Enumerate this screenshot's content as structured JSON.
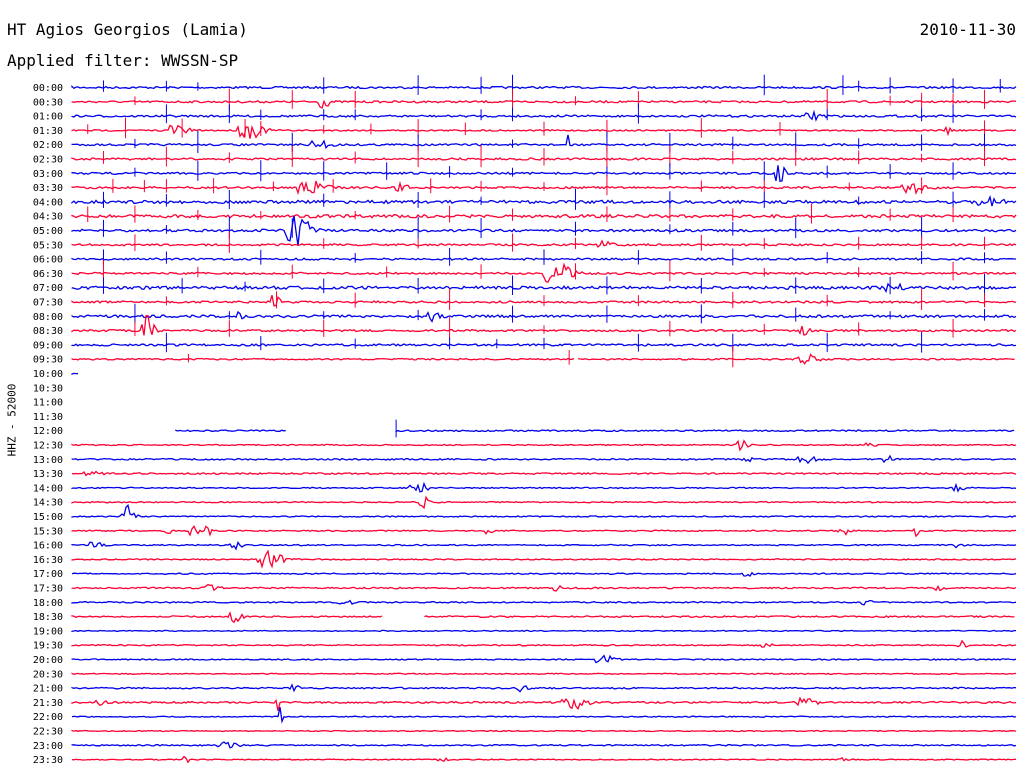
{
  "header": {
    "station": "HT Agios Georgios (Lamia)",
    "date": "2010-11-30",
    "filter": "Applied filter: WWSSN-SP",
    "channel": "HHZ - 52000"
  },
  "colors": {
    "odd": "#ff0033",
    "even": "#0000ee"
  },
  "chart_data": {
    "type": "line",
    "title": "HT Agios Georgios (Lamia)",
    "subtitle": "Applied filter: WWSSN-SP",
    "ylabel": "HHZ - 52000",
    "date": "2010-11-30",
    "row_labels": [
      "00:00",
      "00:30",
      "01:00",
      "01:30",
      "02:00",
      "02:30",
      "03:00",
      "03:30",
      "04:00",
      "04:30",
      "05:00",
      "05:30",
      "06:00",
      "06:30",
      "07:00",
      "07:30",
      "08:00",
      "08:30",
      "09:00",
      "09:30",
      "10:00",
      "10:30",
      "11:00",
      "11:30",
      "12:00",
      "12:30",
      "13:00",
      "13:30",
      "14:00",
      "14:30",
      "15:00",
      "15:30",
      "16:00",
      "16:30",
      "17:00",
      "17:30",
      "18:00",
      "18:30",
      "19:00",
      "19:30",
      "20:00",
      "20:30",
      "21:00",
      "21:30",
      "22:00",
      "22:30",
      "23:00",
      "23:30"
    ],
    "x_range_minutes": [
      0,
      30
    ],
    "rows": [
      {
        "seg": [
          [
            0,
            30
          ]
        ],
        "noise": 2,
        "spikes": [
          1,
          3,
          4,
          8,
          11,
          13,
          14,
          22,
          24.5,
          25,
          26,
          28,
          29.5
        ],
        "events": []
      },
      {
        "seg": [
          [
            0,
            30
          ]
        ],
        "noise": 2,
        "spikes": [
          2,
          5,
          7,
          9,
          14,
          16,
          18,
          24,
          26,
          27,
          28,
          29
        ],
        "events": [
          [
            7.9,
            0.4,
            6
          ]
        ]
      },
      {
        "seg": [
          [
            0,
            30
          ]
        ],
        "noise": 2,
        "spikes": [
          3,
          5,
          6,
          8,
          9,
          13,
          14,
          18,
          24,
          27,
          28
        ],
        "events": [
          [
            23.5,
            0.6,
            4
          ]
        ]
      },
      {
        "seg": [
          [
            0,
            30
          ]
        ],
        "noise": 1.5,
        "spikes": [
          0.5,
          1.7,
          3.5,
          5.5,
          6,
          8,
          9.5,
          11,
          12.5,
          15,
          17,
          20,
          22.5,
          29
        ],
        "events": [
          [
            3.2,
            0.6,
            8
          ],
          [
            5.5,
            0.8,
            8
          ],
          [
            27.8,
            0.2,
            7
          ]
        ]
      },
      {
        "seg": [
          [
            0,
            30
          ]
        ],
        "noise": 2,
        "spikes": [
          2,
          4,
          7,
          11,
          14,
          17,
          19,
          21,
          23,
          25,
          27,
          29
        ],
        "events": [
          [
            7.8,
            0.6,
            5
          ],
          [
            15.7,
            0.2,
            10
          ]
        ]
      },
      {
        "seg": [
          [
            0,
            30
          ]
        ],
        "noise": 2,
        "spikes": [
          1,
          3,
          5,
          7,
          9,
          11,
          13,
          15,
          17,
          19,
          21,
          23,
          25,
          27,
          29
        ],
        "events": []
      },
      {
        "seg": [
          [
            0,
            30
          ]
        ],
        "noise": 2,
        "spikes": [
          2,
          4,
          6,
          8,
          10,
          12,
          14,
          17,
          19,
          22,
          24,
          26,
          28
        ],
        "events": [
          [
            22.4,
            0.3,
            14
          ]
        ]
      },
      {
        "seg": [
          [
            0,
            30
          ]
        ],
        "noise": 2,
        "spikes": [
          1.3,
          2.3,
          3,
          4.5,
          6.4,
          8.3,
          11.4,
          13,
          15,
          17,
          20,
          22,
          24.7,
          27
        ],
        "events": [
          [
            7.4,
            0.9,
            7
          ],
          [
            26.6,
            0.8,
            5
          ],
          [
            10.4,
            0.4,
            4
          ]
        ]
      },
      {
        "seg": [
          [
            0,
            30
          ]
        ],
        "noise": 3,
        "spikes": [
          1,
          3,
          5,
          8,
          11,
          13,
          16,
          19,
          22,
          25,
          28
        ],
        "events": [
          [
            29,
            0.8,
            4
          ]
        ]
      },
      {
        "seg": [
          [
            0,
            30
          ]
        ],
        "noise": 3,
        "spikes": [
          0.5,
          2,
          4,
          6,
          9,
          12,
          14,
          17,
          19,
          21,
          23.5,
          26,
          28
        ],
        "events": []
      },
      {
        "seg": [
          [
            0,
            30
          ]
        ],
        "noise": 2.5,
        "spikes": [
          1,
          3,
          5,
          7,
          11,
          13,
          16,
          19,
          21,
          23,
          27
        ],
        "events": [
          [
            7,
            0.8,
            16
          ]
        ]
      },
      {
        "seg": [
          [
            0,
            30
          ]
        ],
        "noise": 2,
        "spikes": [
          2,
          5,
          8,
          11,
          14,
          16,
          20,
          22,
          25,
          27,
          29
        ],
        "events": [
          [
            16.8,
            0.6,
            3
          ]
        ]
      },
      {
        "seg": [
          [
            0,
            30
          ]
        ],
        "noise": 2,
        "spikes": [
          1,
          3,
          6,
          9,
          12,
          15,
          18,
          21,
          24,
          27,
          29
        ],
        "events": []
      },
      {
        "seg": [
          [
            0,
            30
          ]
        ],
        "noise": 2,
        "spikes": [
          1,
          4,
          7,
          10,
          13,
          16,
          19,
          22,
          25,
          28
        ],
        "events": [
          [
            15.2,
            0.9,
            11
          ]
        ]
      },
      {
        "seg": [
          [
            0,
            30
          ]
        ],
        "noise": 3,
        "spikes": [
          1,
          3.5,
          5.5,
          8,
          11,
          14,
          17,
          20,
          23,
          26,
          29
        ],
        "events": [
          [
            26,
            0.5,
            4
          ]
        ]
      },
      {
        "seg": [
          [
            0,
            30
          ]
        ],
        "noise": 2,
        "spikes": [
          3,
          6.5,
          9,
          12,
          15,
          18,
          21,
          24,
          27,
          29
        ],
        "events": [
          [
            6.4,
            0.3,
            8
          ]
        ]
      },
      {
        "seg": [
          [
            0,
            30
          ]
        ],
        "noise": 2.5,
        "spikes": [
          2,
          5,
          8,
          11,
          14,
          17,
          20,
          23,
          26,
          29
        ],
        "events": [
          [
            5.2,
            0.3,
            4
          ],
          [
            11.4,
            0.4,
            4
          ]
        ]
      },
      {
        "seg": [
          [
            0,
            30
          ]
        ],
        "noise": 2,
        "spikes": [
          2,
          5,
          8,
          12,
          15,
          19,
          22,
          25,
          28
        ],
        "events": [
          [
            2.3,
            0.4,
            16
          ],
          [
            23.2,
            0.3,
            4
          ]
        ]
      },
      {
        "seg": [
          [
            0,
            30
          ]
        ],
        "noise": 2,
        "spikes": [
          3,
          6,
          9,
          12,
          13.5,
          15,
          18,
          21,
          24,
          27
        ],
        "events": []
      },
      {
        "seg": [
          [
            0,
            16
          ],
          [
            16.1,
            30
          ]
        ],
        "noise": 1.5,
        "spikes": [
          3.7,
          15.8,
          21
        ],
        "events": [
          [
            23.2,
            0.7,
            5
          ]
        ]
      },
      {
        "seg": [
          [
            0,
            0.2
          ]
        ],
        "noise": 1,
        "spikes": [],
        "events": []
      },
      {
        "seg": [],
        "noise": 0,
        "spikes": [],
        "events": []
      },
      {
        "seg": [],
        "noise": 0,
        "spikes": [],
        "events": []
      },
      {
        "seg": [],
        "noise": 0,
        "spikes": [],
        "events": []
      },
      {
        "seg": [
          [
            3.3,
            6.8
          ],
          [
            10.3,
            30
          ]
        ],
        "noise": 1.5,
        "spikes": [
          10.3
        ],
        "events": []
      },
      {
        "seg": [
          [
            0,
            30
          ]
        ],
        "noise": 1.2,
        "spikes": [],
        "events": [
          [
            21.2,
            0.4,
            5
          ],
          [
            25.3,
            0.3,
            5
          ]
        ]
      },
      {
        "seg": [
          [
            0,
            30
          ]
        ],
        "noise": 1.5,
        "spikes": [],
        "events": [
          [
            21.3,
            0.4,
            3
          ],
          [
            23.2,
            0.6,
            4
          ],
          [
            25.8,
            0.4,
            5
          ]
        ]
      },
      {
        "seg": [
          [
            0,
            30
          ]
        ],
        "noise": 1.5,
        "spikes": [],
        "events": [
          [
            0.4,
            0.6,
            3
          ]
        ]
      },
      {
        "seg": [
          [
            0,
            30
          ]
        ],
        "noise": 1.2,
        "spikes": [],
        "events": [
          [
            10.9,
            0.6,
            5
          ],
          [
            28.1,
            0.4,
            3
          ]
        ]
      },
      {
        "seg": [
          [
            0,
            30
          ]
        ],
        "noise": 1.2,
        "spikes": [],
        "events": [
          [
            11.1,
            0.3,
            7
          ]
        ]
      },
      {
        "seg": [
          [
            0,
            30
          ]
        ],
        "noise": 1.2,
        "spikes": [],
        "events": [
          [
            1.7,
            0.4,
            12
          ]
        ]
      },
      {
        "seg": [
          [
            0,
            30
          ]
        ],
        "noise": 1.2,
        "spikes": [],
        "events": [
          [
            3,
            0.2,
            4
          ],
          [
            3.8,
            0.3,
            6
          ],
          [
            4.3,
            0.2,
            6
          ],
          [
            13.2,
            0.2,
            4
          ],
          [
            18.6,
            0.2,
            3
          ],
          [
            24.4,
            0.4,
            5
          ],
          [
            26.8,
            0.2,
            5
          ]
        ]
      },
      {
        "seg": [
          [
            0,
            30
          ]
        ],
        "noise": 1.2,
        "spikes": [],
        "events": [
          [
            0.6,
            0.5,
            3
          ],
          [
            5.1,
            0.4,
            4
          ],
          [
            28.2,
            0.5,
            4
          ]
        ]
      },
      {
        "seg": [
          [
            0,
            30
          ]
        ],
        "noise": 1.2,
        "spikes": [],
        "events": [
          [
            6.1,
            0.8,
            9
          ]
        ]
      },
      {
        "seg": [
          [
            0,
            30
          ]
        ],
        "noise": 1.2,
        "spikes": [],
        "events": [
          [
            21.4,
            0.3,
            5
          ]
        ]
      },
      {
        "seg": [
          [
            0,
            30
          ]
        ],
        "noise": 1.5,
        "spikes": [],
        "events": [
          [
            4.2,
            0.6,
            3
          ],
          [
            15.4,
            0.3,
            3
          ],
          [
            27.5,
            0.3,
            3
          ]
        ]
      },
      {
        "seg": [
          [
            0,
            30
          ]
        ],
        "noise": 1.3,
        "spikes": [],
        "events": [
          [
            8.6,
            0.5,
            2
          ],
          [
            25.1,
            0.5,
            2
          ]
        ]
      },
      {
        "seg": [
          [
            0,
            9.9
          ],
          [
            11.2,
            30
          ]
        ],
        "noise": 1.5,
        "spikes": [],
        "events": [
          [
            5.1,
            0.4,
            5
          ]
        ]
      },
      {
        "seg": [
          [
            0,
            30
          ]
        ],
        "noise": 1,
        "spikes": [],
        "events": []
      },
      {
        "seg": [
          [
            0,
            30
          ]
        ],
        "noise": 1.2,
        "spikes": [],
        "events": [
          [
            22,
            0.3,
            3
          ],
          [
            28.2,
            0.3,
            4
          ]
        ]
      },
      {
        "seg": [
          [
            0,
            30
          ]
        ],
        "noise": 1.2,
        "spikes": [],
        "events": [
          [
            16.8,
            0.6,
            5
          ]
        ]
      },
      {
        "seg": [
          [
            0,
            30
          ]
        ],
        "noise": 1,
        "spikes": [],
        "events": []
      },
      {
        "seg": [
          [
            0,
            30
          ]
        ],
        "noise": 1.5,
        "spikes": [],
        "events": [
          [
            7,
            0.3,
            3
          ],
          [
            14.2,
            0.4,
            4
          ]
        ]
      },
      {
        "seg": [
          [
            0,
            30
          ]
        ],
        "noise": 1.8,
        "spikes": [],
        "events": [
          [
            0.8,
            0.3,
            4
          ],
          [
            6.5,
            0.1,
            12
          ],
          [
            15.8,
            0.8,
            7
          ],
          [
            23.2,
            0.6,
            5
          ]
        ]
      },
      {
        "seg": [
          [
            0,
            30
          ]
        ],
        "noise": 1,
        "spikes": [],
        "events": [
          [
            6.6,
            0.1,
            16
          ]
        ]
      },
      {
        "seg": [
          [
            0,
            30
          ]
        ],
        "noise": 1,
        "spikes": [],
        "events": []
      },
      {
        "seg": [
          [
            0,
            30
          ]
        ],
        "noise": 1.3,
        "spikes": [],
        "events": [
          [
            4.8,
            0.6,
            3
          ]
        ]
      },
      {
        "seg": [
          [
            0,
            30
          ]
        ],
        "noise": 1,
        "spikes": [],
        "events": [
          [
            3.6,
            0.2,
            4
          ],
          [
            11.7,
            0.3,
            2
          ],
          [
            24.4,
            0.3,
            2
          ]
        ]
      }
    ]
  }
}
